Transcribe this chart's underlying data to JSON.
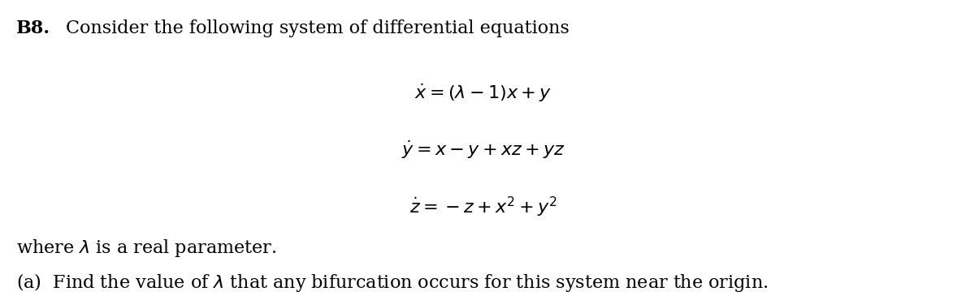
{
  "background_color": "#ffffff",
  "title_bold": "B8.",
  "title_text": "Consider the following system of differential equations",
  "eq1": "$\\dot{x} = (\\lambda - 1)x + y$",
  "eq2": "$\\dot{y} = x - y + xz + yz$",
  "eq3": "$\\dot{z} = -z + x^2 + y^2$",
  "where_text": "where $\\lambda$ is a real parameter.",
  "part_a": "(a)  Find the value of $\\lambda$ that any bifurcation occurs for this system near the origin.",
  "figwidth": 12.0,
  "figheight": 3.65,
  "dpi": 100
}
